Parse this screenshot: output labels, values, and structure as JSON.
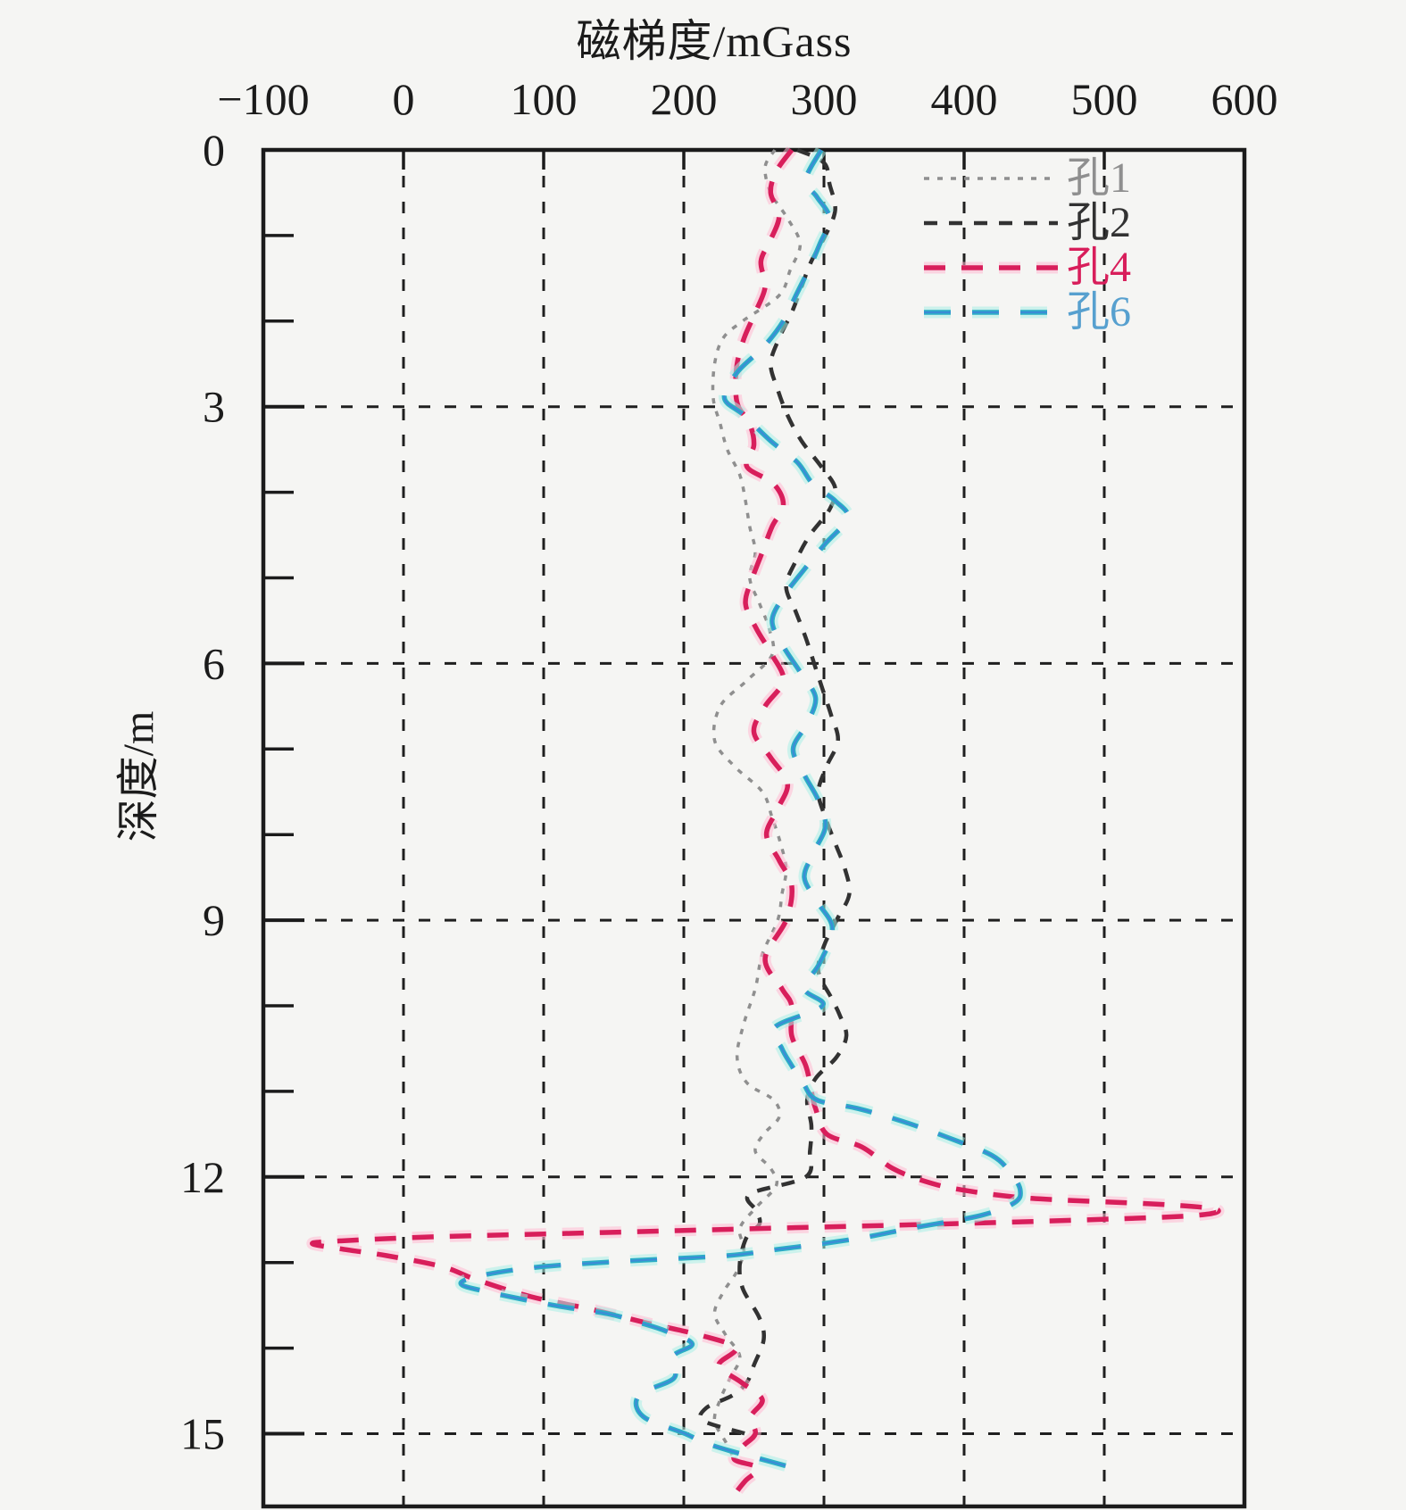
{
  "page": {
    "background": "#f5f5f3"
  },
  "chart_data": {
    "type": "line",
    "title": "磁梯度/mGass",
    "xlabel": "磁梯度/mGass",
    "ylabel": "深度/m",
    "x_axis": {
      "position": "top",
      "min": -100,
      "max": 600,
      "ticks": [
        -100,
        0,
        100,
        200,
        300,
        400,
        500,
        600
      ],
      "tick_labels": [
        "−100",
        "0",
        "100",
        "200",
        "300",
        "400",
        "500",
        "600"
      ]
    },
    "y_axis": {
      "min": 0,
      "max": 15.85,
      "inverted": true,
      "ticks": [
        0,
        3,
        6,
        9,
        12,
        15
      ],
      "tick_labels": [
        "0",
        "3",
        "6",
        "9",
        "12",
        "15"
      ],
      "minor_tick_step": 1
    },
    "grid": {
      "show": true,
      "style": "dashed",
      "color": "#1f1f1f"
    },
    "legend_position": "top-right inside",
    "series": [
      {
        "name": "孔1",
        "color": "#8f8f8f",
        "label_color": "#8f8f8f",
        "halo": "",
        "core": "",
        "dash": "6 9",
        "width": 3.5,
        "points": [
          [
            0,
            265
          ],
          [
            0.2,
            258
          ],
          [
            0.5,
            262
          ],
          [
            0.8,
            274
          ],
          [
            1.1,
            283
          ],
          [
            1.4,
            276
          ],
          [
            1.7,
            268
          ],
          [
            2.0,
            242
          ],
          [
            2.2,
            228
          ],
          [
            2.5,
            222
          ],
          [
            2.9,
            221
          ],
          [
            3.2,
            226
          ],
          [
            3.5,
            231
          ],
          [
            3.8,
            240
          ],
          [
            4.1,
            244
          ],
          [
            4.4,
            247
          ],
          [
            4.7,
            251
          ],
          [
            5.0,
            247
          ],
          [
            5.3,
            254
          ],
          [
            5.6,
            261
          ],
          [
            5.9,
            263
          ],
          [
            6.2,
            245
          ],
          [
            6.5,
            226
          ],
          [
            6.9,
            222
          ],
          [
            7.2,
            236
          ],
          [
            7.5,
            256
          ],
          [
            7.8,
            263
          ],
          [
            8.1,
            269
          ],
          [
            8.4,
            273
          ],
          [
            8.7,
            270
          ],
          [
            9.0,
            267
          ],
          [
            9.4,
            256
          ],
          [
            9.8,
            251
          ],
          [
            10.2,
            243
          ],
          [
            10.6,
            238
          ],
          [
            10.9,
            245
          ],
          [
            11.1,
            264
          ],
          [
            11.3,
            268
          ],
          [
            11.5,
            257
          ],
          [
            11.7,
            251
          ],
          [
            11.9,
            262
          ],
          [
            12.1,
            266
          ],
          [
            12.35,
            252
          ],
          [
            12.6,
            240
          ],
          [
            12.85,
            243
          ],
          [
            13.1,
            238
          ],
          [
            13.35,
            228
          ],
          [
            13.6,
            222
          ],
          [
            13.85,
            230
          ],
          [
            14.1,
            240
          ],
          [
            14.35,
            233
          ],
          [
            14.6,
            226
          ],
          [
            14.85,
            222
          ],
          [
            15.1,
            230
          ],
          [
            15.3,
            236
          ]
        ]
      },
      {
        "name": "孔2",
        "color": "#323232",
        "label_color": "#323232",
        "halo": "",
        "core": "",
        "dash": "15 13",
        "width": 4.5,
        "points": [
          [
            0,
            281
          ],
          [
            0.15,
            300
          ],
          [
            0.4,
            304
          ],
          [
            0.7,
            308
          ],
          [
            1.0,
            301
          ],
          [
            1.3,
            291
          ],
          [
            1.6,
            284
          ],
          [
            1.9,
            277
          ],
          [
            2.2,
            268
          ],
          [
            2.5,
            262
          ],
          [
            2.8,
            267
          ],
          [
            3.1,
            274
          ],
          [
            3.4,
            284
          ],
          [
            3.7,
            298
          ],
          [
            3.95,
            308
          ],
          [
            4.2,
            304
          ],
          [
            4.5,
            290
          ],
          [
            4.8,
            280
          ],
          [
            5.1,
            273
          ],
          [
            5.4,
            280
          ],
          [
            5.7,
            287
          ],
          [
            6.0,
            293
          ],
          [
            6.3,
            299
          ],
          [
            6.6,
            305
          ],
          [
            6.9,
            310
          ],
          [
            7.2,
            302
          ],
          [
            7.5,
            296
          ],
          [
            7.8,
            301
          ],
          [
            8.1,
            308
          ],
          [
            8.4,
            315
          ],
          [
            8.7,
            318
          ],
          [
            9.0,
            309
          ],
          [
            9.3,
            300
          ],
          [
            9.6,
            296
          ],
          [
            9.9,
            305
          ],
          [
            10.1,
            311
          ],
          [
            10.35,
            316
          ],
          [
            10.6,
            309
          ],
          [
            10.85,
            294
          ],
          [
            11.1,
            288
          ],
          [
            11.4,
            291
          ],
          [
            11.7,
            290
          ],
          [
            12.0,
            287
          ],
          [
            12.2,
            247
          ],
          [
            12.4,
            252
          ],
          [
            12.55,
            254
          ],
          [
            12.7,
            245
          ],
          [
            13.0,
            240
          ],
          [
            13.3,
            242
          ],
          [
            13.65,
            254
          ],
          [
            13.9,
            257
          ],
          [
            14.2,
            250
          ],
          [
            14.4,
            245
          ],
          [
            14.55,
            235
          ],
          [
            14.7,
            216
          ],
          [
            14.85,
            214
          ],
          [
            15.0,
            244
          ],
          [
            15.05,
            251
          ]
        ]
      },
      {
        "name": "孔4",
        "color": "#d81e5b",
        "label_color": "#d81e5b",
        "halo": "#ffb9d2",
        "core": "",
        "dash": "24 18",
        "width": 5.5,
        "points": [
          [
            0,
            277
          ],
          [
            0.25,
            266
          ],
          [
            0.5,
            262
          ],
          [
            0.77,
            268
          ],
          [
            1.05,
            262
          ],
          [
            1.3,
            255
          ],
          [
            1.6,
            258
          ],
          [
            1.9,
            251
          ],
          [
            2.2,
            243
          ],
          [
            2.5,
            238
          ],
          [
            2.8,
            237
          ],
          [
            3.0,
            239
          ],
          [
            3.2,
            247
          ],
          [
            3.45,
            250
          ],
          [
            3.7,
            245
          ],
          [
            3.9,
            264
          ],
          [
            4.15,
            271
          ],
          [
            4.4,
            263
          ],
          [
            4.7,
            256
          ],
          [
            5.0,
            249
          ],
          [
            5.3,
            244
          ],
          [
            5.6,
            252
          ],
          [
            5.9,
            263
          ],
          [
            6.2,
            271
          ],
          [
            6.5,
            258
          ],
          [
            6.8,
            250
          ],
          [
            7.1,
            262
          ],
          [
            7.4,
            274
          ],
          [
            7.7,
            267
          ],
          [
            8.0,
            259
          ],
          [
            8.3,
            268
          ],
          [
            8.6,
            277
          ],
          [
            9.0,
            273
          ],
          [
            9.45,
            258
          ],
          [
            9.8,
            270
          ],
          [
            10.0,
            277
          ],
          [
            10.35,
            277
          ],
          [
            10.7,
            287
          ],
          [
            11.0,
            291
          ],
          [
            11.2,
            294
          ],
          [
            11.5,
            302
          ],
          [
            11.65,
            327
          ],
          [
            11.9,
            349
          ],
          [
            12.05,
            372
          ],
          [
            12.15,
            398
          ],
          [
            12.25,
            448
          ],
          [
            12.32,
            540
          ],
          [
            12.38,
            580
          ],
          [
            12.45,
            565
          ],
          [
            12.5,
            490
          ],
          [
            12.55,
            385
          ],
          [
            12.6,
            262
          ],
          [
            12.65,
            142
          ],
          [
            12.7,
            22
          ],
          [
            12.75,
            -48
          ],
          [
            12.78,
            -65
          ],
          [
            12.84,
            -45
          ],
          [
            12.92,
            -12
          ],
          [
            13.05,
            28
          ],
          [
            13.2,
            52
          ],
          [
            13.4,
            91
          ],
          [
            13.55,
            135
          ],
          [
            13.7,
            172
          ],
          [
            13.85,
            212
          ],
          [
            14.0,
            237
          ],
          [
            14.2,
            225
          ],
          [
            14.4,
            241
          ],
          [
            14.6,
            256
          ],
          [
            14.8,
            248
          ],
          [
            15.0,
            251
          ],
          [
            15.15,
            242
          ],
          [
            15.3,
            236
          ],
          [
            15.4,
            253
          ],
          [
            15.55,
            244
          ],
          [
            15.7,
            237
          ],
          [
            15.8,
            236
          ]
        ]
      },
      {
        "name": "孔6",
        "color": "#2aaec6",
        "label_color": "#57a0cf",
        "halo": "#a9efe6",
        "core": "#3f86d8",
        "dash": "30 24",
        "width": 5.5,
        "points": [
          [
            0,
            298
          ],
          [
            0.35,
            287
          ],
          [
            0.55,
            295
          ],
          [
            0.8,
            304
          ],
          [
            1.1,
            297
          ],
          [
            1.4,
            289
          ],
          [
            1.7,
            280
          ],
          [
            2.0,
            271
          ],
          [
            2.3,
            257
          ],
          [
            2.6,
            238
          ],
          [
            2.9,
            229
          ],
          [
            3.1,
            243
          ],
          [
            3.4,
            262
          ],
          [
            3.65,
            281
          ],
          [
            3.9,
            292
          ],
          [
            4.1,
            308
          ],
          [
            4.3,
            317
          ],
          [
            4.6,
            301
          ],
          [
            4.9,
            286
          ],
          [
            5.2,
            272
          ],
          [
            5.5,
            263
          ],
          [
            5.8,
            271
          ],
          [
            6.1,
            283
          ],
          [
            6.4,
            294
          ],
          [
            6.7,
            288
          ],
          [
            7.0,
            278
          ],
          [
            7.3,
            286
          ],
          [
            7.6,
            296
          ],
          [
            7.9,
            301
          ],
          [
            8.2,
            293
          ],
          [
            8.5,
            286
          ],
          [
            8.8,
            296
          ],
          [
            9.1,
            306
          ],
          [
            9.5,
            297
          ],
          [
            9.8,
            286
          ],
          [
            10.0,
            299
          ],
          [
            10.25,
            265
          ],
          [
            10.5,
            270
          ],
          [
            10.7,
            277
          ],
          [
            10.9,
            285
          ],
          [
            11.1,
            295
          ],
          [
            11.2,
            324
          ],
          [
            11.35,
            356
          ],
          [
            11.55,
            390
          ],
          [
            11.75,
            420
          ],
          [
            11.95,
            433
          ],
          [
            12.15,
            440
          ],
          [
            12.3,
            436
          ],
          [
            12.45,
            412
          ],
          [
            12.6,
            362
          ],
          [
            12.7,
            331
          ],
          [
            12.78,
            299
          ],
          [
            12.85,
            265
          ],
          [
            12.92,
            231
          ],
          [
            12.98,
            162
          ],
          [
            13.05,
            98
          ],
          [
            13.15,
            56
          ],
          [
            13.25,
            41
          ],
          [
            13.35,
            62
          ],
          [
            13.5,
            107
          ],
          [
            13.6,
            146
          ],
          [
            13.7,
            168
          ],
          [
            13.8,
            187
          ],
          [
            13.95,
            206
          ],
          [
            14.1,
            192
          ],
          [
            14.35,
            193
          ],
          [
            14.55,
            168
          ],
          [
            14.8,
            171
          ],
          [
            15.0,
            201
          ],
          [
            15.1,
            214
          ],
          [
            15.2,
            233
          ],
          [
            15.3,
            256
          ],
          [
            15.4,
            278
          ]
        ]
      }
    ]
  }
}
